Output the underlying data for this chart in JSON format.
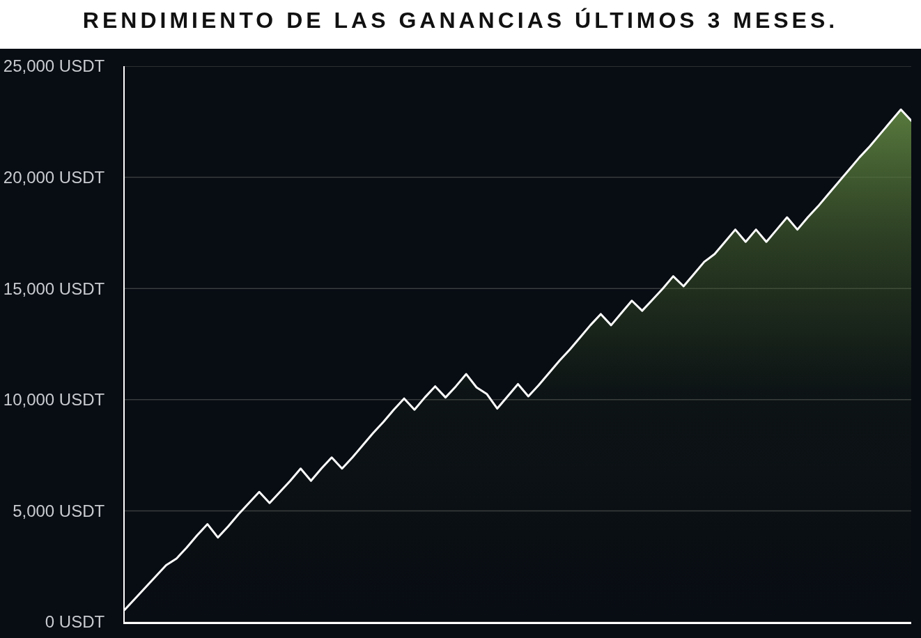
{
  "chart_data": {
    "type": "area",
    "title": "RENDIMIENTO DE LAS GANANCIAS ÚLTIMOS 3 MESES.",
    "categories": [
      null,
      null,
      null,
      null,
      null,
      null,
      null,
      null,
      null,
      null,
      null,
      null,
      null,
      null,
      null,
      null,
      null,
      null,
      null,
      null,
      null,
      null,
      null,
      null,
      null,
      null,
      null,
      null,
      null,
      null,
      null,
      null,
      null,
      null,
      null,
      null,
      null,
      null,
      null,
      null,
      null,
      null,
      null,
      null,
      null,
      null,
      null,
      null,
      null,
      null,
      null,
      null,
      null,
      null,
      null,
      null,
      null,
      null,
      null,
      null,
      null,
      null,
      null,
      null,
      null,
      null,
      null,
      null,
      null,
      null,
      null,
      null,
      null,
      null,
      null,
      null,
      null
    ],
    "series": [
      {
        "color": "#ffffff",
        "values": [
          550,
          1050,
          1550,
          2050,
          2550,
          2850,
          3350,
          3900,
          4400,
          3800,
          4300,
          4850,
          5350,
          5850,
          5350,
          5850,
          6350,
          6900,
          6350,
          6900,
          7400,
          6900,
          7400,
          7950,
          8500,
          9000,
          9550,
          10050,
          9550,
          10100,
          10600,
          10100,
          10600,
          11150,
          10550,
          10250,
          9600,
          10150,
          10700,
          10150,
          10650,
          11200,
          11750,
          12250,
          12800,
          13350,
          13850,
          13350,
          13900,
          14450,
          14000,
          14500,
          15000,
          15550,
          15100,
          15650,
          16200,
          16550,
          17100,
          17650,
          17100,
          17650,
          17100,
          17650,
          18200,
          17650,
          18200,
          18700,
          19250,
          19800,
          20350,
          20900,
          21400,
          21950,
          22500,
          23050,
          22550
        ]
      }
    ],
    "ylim": [
      0,
      25000
    ],
    "yticks": [
      {
        "value": 0,
        "label": "0 USDT"
      },
      {
        "value": 5000,
        "label": "5,000 USDT"
      },
      {
        "value": 10000,
        "label": "10,000 USDT"
      },
      {
        "value": 15000,
        "label": "15,000 USDT"
      },
      {
        "value": 20000,
        "label": "20,000 USDT"
      },
      {
        "value": 25000,
        "label": "25,000 USDT"
      }
    ],
    "grid": "y",
    "tick_labels": "y"
  }
}
